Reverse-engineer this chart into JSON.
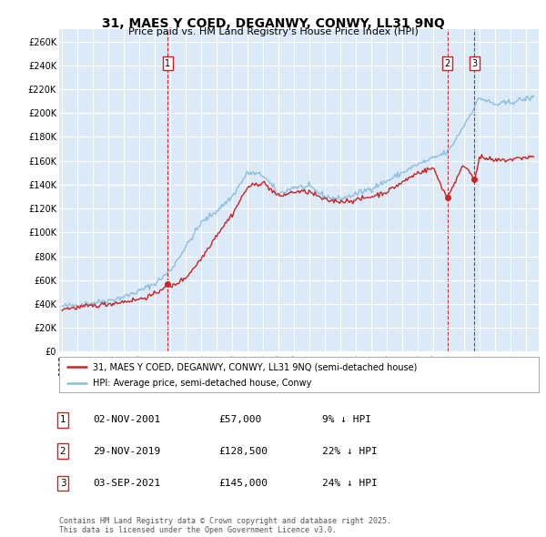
{
  "title": "31, MAES Y COED, DEGANWY, CONWY, LL31 9NQ",
  "subtitle": "Price paid vs. HM Land Registry's House Price Index (HPI)",
  "ylim": [
    0,
    270000
  ],
  "yticks": [
    0,
    20000,
    40000,
    60000,
    80000,
    100000,
    120000,
    140000,
    160000,
    180000,
    200000,
    220000,
    240000,
    260000
  ],
  "ytick_labels": [
    "£0",
    "£20K",
    "£40K",
    "£60K",
    "£80K",
    "£100K",
    "£120K",
    "£140K",
    "£160K",
    "£180K",
    "£200K",
    "£220K",
    "£240K",
    "£260K"
  ],
  "xlim_start": 1994.8,
  "xlim_end": 2025.8,
  "xticks": [
    1995,
    1996,
    1997,
    1998,
    1999,
    2000,
    2001,
    2002,
    2003,
    2004,
    2005,
    2006,
    2007,
    2008,
    2009,
    2010,
    2011,
    2012,
    2013,
    2014,
    2015,
    2016,
    2017,
    2018,
    2019,
    2020,
    2021,
    2022,
    2023,
    2024,
    2025
  ],
  "plot_bg": "#dce9f7",
  "grid_color": "#ffffff",
  "hpi_color": "#8bbfdf",
  "price_color": "#cc2222",
  "vline_color": "#cc2222",
  "annotation_box_color": "#cc2222",
  "sales": [
    {
      "date_num": 2001.84,
      "price": 57000,
      "label": "1"
    },
    {
      "date_num": 2019.91,
      "price": 128500,
      "label": "2"
    },
    {
      "date_num": 2021.67,
      "price": 145000,
      "label": "3"
    }
  ],
  "legend_line1": "31, MAES Y COED, DEGANWY, CONWY, LL31 9NQ (semi-detached house)",
  "legend_line2": "HPI: Average price, semi-detached house, Conwy",
  "table_rows": [
    {
      "num": "1",
      "date": "02-NOV-2001",
      "price": "£57,000",
      "pct": "9% ↓ HPI"
    },
    {
      "num": "2",
      "date": "29-NOV-2019",
      "price": "£128,500",
      "pct": "22% ↓ HPI"
    },
    {
      "num": "3",
      "date": "03-SEP-2021",
      "price": "£145,000",
      "pct": "24% ↓ HPI"
    }
  ],
  "footer": "Contains HM Land Registry data © Crown copyright and database right 2025.\nThis data is licensed under the Open Government Licence v3.0."
}
